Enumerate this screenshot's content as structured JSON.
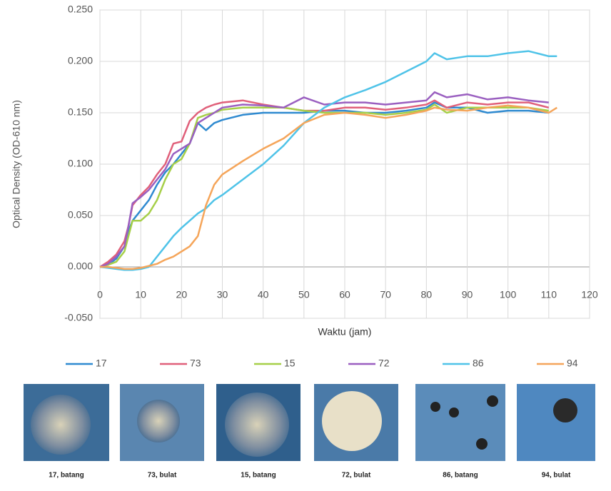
{
  "chart_data": {
    "type": "line",
    "ylabel": "Optical Density (OD-610 nm)",
    "xlabel": "Waktu (jam)",
    "x": [
      0,
      2,
      4,
      6,
      7,
      8,
      10,
      12,
      14,
      16,
      18,
      20,
      22,
      24,
      26,
      28,
      30,
      35,
      40,
      45,
      50,
      55,
      60,
      65,
      70,
      75,
      80,
      82,
      85,
      90,
      95,
      100,
      105,
      110,
      112
    ],
    "series": [
      {
        "name": "17",
        "color": "#2f8ad0",
        "values": [
          0,
          0.002,
          0.008,
          0.02,
          0.035,
          0.045,
          0.055,
          0.065,
          0.08,
          0.092,
          0.1,
          0.11,
          0.12,
          0.14,
          0.133,
          0.14,
          0.143,
          0.148,
          0.15,
          0.15,
          0.15,
          0.152,
          0.152,
          0.15,
          0.15,
          0.152,
          0.155,
          0.16,
          0.155,
          0.155,
          0.15,
          0.152,
          0.152,
          0.15,
          null
        ]
      },
      {
        "name": "73",
        "color": "#e0607a",
        "values": [
          0,
          0.005,
          0.012,
          0.025,
          0.04,
          0.06,
          0.07,
          0.078,
          0.09,
          0.1,
          0.12,
          0.122,
          0.142,
          0.15,
          0.155,
          0.158,
          0.16,
          0.162,
          0.158,
          0.155,
          0.152,
          0.152,
          0.155,
          0.155,
          0.153,
          0.155,
          0.158,
          0.162,
          0.155,
          0.16,
          0.158,
          0.16,
          0.16,
          0.155,
          null
        ]
      },
      {
        "name": "15",
        "color": "#a6cf48",
        "values": [
          0,
          0.002,
          0.005,
          0.015,
          0.03,
          0.045,
          0.045,
          0.052,
          0.065,
          0.085,
          0.1,
          0.105,
          0.12,
          0.145,
          0.148,
          0.15,
          0.153,
          0.155,
          0.155,
          0.155,
          0.152,
          0.15,
          0.15,
          0.15,
          0.148,
          0.15,
          0.153,
          0.158,
          0.15,
          0.155,
          0.155,
          0.155,
          0.155,
          0.152,
          null
        ]
      },
      {
        "name": "72",
        "color": "#9a5fc0",
        "values": [
          0,
          0.003,
          0.01,
          0.02,
          0.04,
          0.062,
          0.068,
          0.075,
          0.085,
          0.095,
          0.11,
          0.115,
          0.12,
          0.14,
          0.145,
          0.15,
          0.155,
          0.158,
          0.157,
          0.155,
          0.165,
          0.158,
          0.16,
          0.16,
          0.158,
          0.16,
          0.162,
          0.17,
          0.165,
          0.168,
          0.163,
          0.165,
          0.162,
          0.16,
          null
        ]
      },
      {
        "name": "86",
        "color": "#4fc3e8",
        "values": [
          0,
          -0.001,
          -0.002,
          -0.003,
          -0.003,
          -0.003,
          -0.002,
          0,
          0.01,
          0.02,
          0.03,
          0.038,
          0.045,
          0.052,
          0.057,
          0.065,
          0.07,
          0.085,
          0.1,
          0.118,
          0.14,
          0.155,
          0.165,
          0.172,
          0.18,
          0.19,
          0.2,
          0.208,
          0.202,
          0.205,
          0.205,
          0.208,
          0.21,
          0.205,
          0.205
        ]
      },
      {
        "name": "94",
        "color": "#f5a55a",
        "values": [
          0,
          0,
          -0.001,
          -0.002,
          -0.002,
          -0.002,
          -0.001,
          0.001,
          0.003,
          0.007,
          0.01,
          0.015,
          0.02,
          0.03,
          0.06,
          0.08,
          0.09,
          0.103,
          0.115,
          0.125,
          0.14,
          0.148,
          0.15,
          0.148,
          0.145,
          0.148,
          0.152,
          0.155,
          0.153,
          0.152,
          0.155,
          0.157,
          0.155,
          0.15,
          0.155
        ]
      }
    ],
    "xlim": [
      0,
      120
    ],
    "xticks": [
      0,
      10,
      20,
      30,
      40,
      50,
      60,
      70,
      80,
      90,
      100,
      110,
      120
    ],
    "ylim": [
      -0.05,
      0.25
    ],
    "yticks": [
      {
        "value": -0.05,
        "label": "-0.050"
      },
      {
        "value": 0,
        "label": "0.000"
      },
      {
        "value": 0.05,
        "label": "0.050"
      },
      {
        "value": 0.1,
        "label": "0.100"
      },
      {
        "value": 0.15,
        "label": "0.150"
      },
      {
        "value": 0.2,
        "label": "0.200"
      },
      {
        "value": 0.25,
        "label": "0.250"
      }
    ],
    "grid": true
  },
  "captions": [
    "17, batang",
    "73, bulat",
    "15, batang",
    "72, bulat",
    "86, batang",
    "94, bulat"
  ]
}
